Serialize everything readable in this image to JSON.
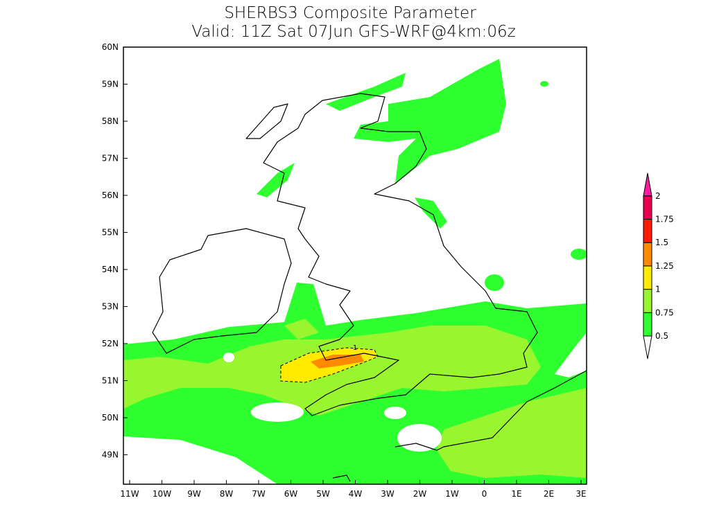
{
  "title": [
    "SHERBS3 Composite Parameter",
    "Valid: 11Z Sat 07Jun GFS-WRF@4km:06z"
  ],
  "x_labels": [
    "11W",
    "10W",
    "9W",
    "8W",
    "7W",
    "6W",
    "5W",
    "4W",
    "3W",
    "2W",
    "1W",
    "0",
    "1E",
    "2E",
    "3E"
  ],
  "y_labels": [
    "60N",
    "59N",
    "58N",
    "57N",
    "56N",
    "55N",
    "54N",
    "53N",
    "52N",
    "51N",
    "50N",
    "49N"
  ],
  "contour_label": "1",
  "legend": {
    "levels": [
      0.5,
      0.75,
      1,
      1.25,
      1.5,
      1.75,
      2
    ],
    "colors": [
      "#2eff2e",
      "#99f52e",
      "#ffea00",
      "#ff8a00",
      "#ff1a00",
      "#e6004d",
      "#ff1a9e"
    ],
    "below_color": "#ffffff"
  }
}
